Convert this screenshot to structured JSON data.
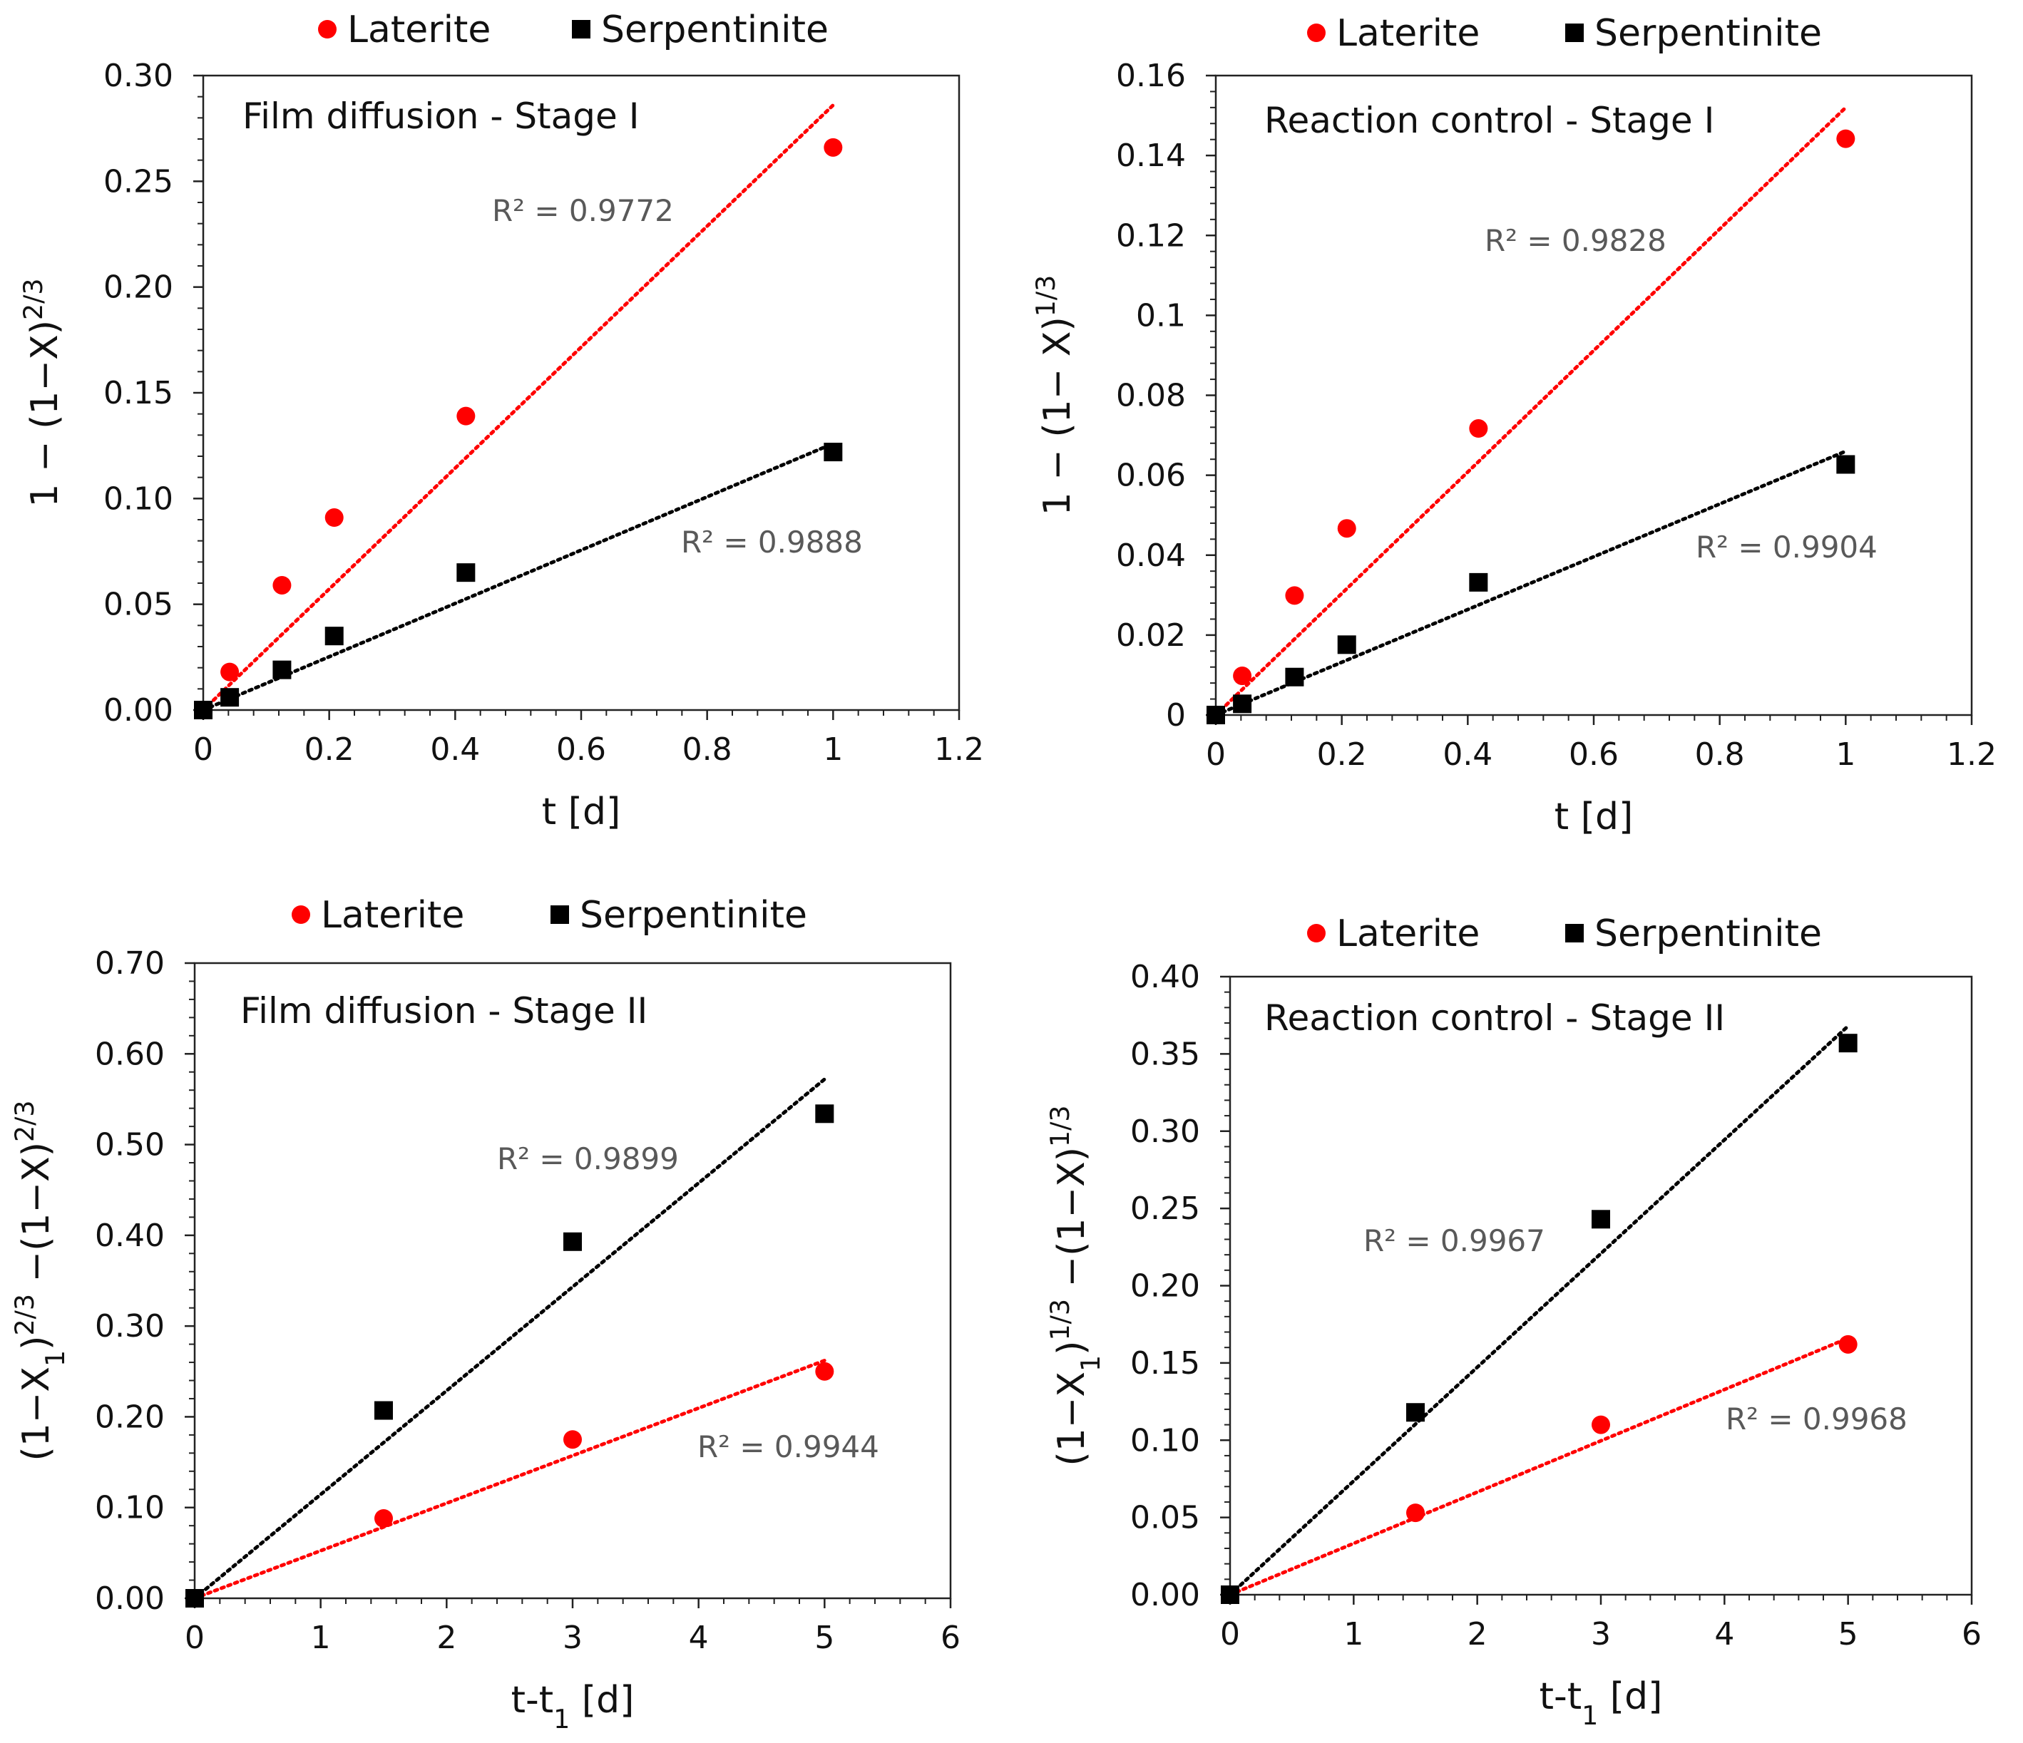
{
  "chart_data": [
    {
      "type": "scatter",
      "title": "Film diffusion - Stage I",
      "xlabel": "t [d]",
      "ylabel": "1 − (1−X)²ᐟ³",
      "ylabel_parts": [
        {
          "t": "1 − (1−X)"
        },
        {
          "t": "2/3",
          "sup": true
        }
      ],
      "xlim": [
        0,
        1.2
      ],
      "ylim": [
        0,
        0.3
      ],
      "x_ticks": [
        "0",
        "0.2",
        "0.4",
        "0.6",
        "0.8",
        "1",
        "1.2"
      ],
      "y_ticks": [
        "0.00",
        "0.05",
        "0.10",
        "0.15",
        "0.20",
        "0.25",
        "0.30"
      ],
      "legend": [
        "Laterite",
        "Serpentinite"
      ],
      "legend_position": "top",
      "grid": false,
      "series": [
        {
          "name": "Laterite",
          "marker": "circle",
          "color": "#ff0000",
          "x": [
            0,
            0.042,
            0.125,
            0.208,
            0.417,
            1.0
          ],
          "y": [
            0.0,
            0.018,
            0.059,
            0.091,
            0.139,
            0.266
          ],
          "trendline": {
            "x": [
              0,
              1.0
            ],
            "y": [
              0.0,
              0.286
            ]
          },
          "r2_label": "R² = 0.9772"
        },
        {
          "name": "Serpentinite",
          "marker": "square",
          "color": "#000000",
          "x": [
            0,
            0.042,
            0.125,
            0.208,
            0.417,
            1.0
          ],
          "y": [
            0.0,
            0.006,
            0.019,
            0.035,
            0.065,
            0.122
          ],
          "trendline": {
            "x": [
              0,
              1.0
            ],
            "y": [
              0.0,
              0.126
            ]
          },
          "r2_label": "R² = 0.9888"
        }
      ]
    },
    {
      "type": "scatter",
      "title": "Reaction control - Stage I",
      "xlabel": "t [d]",
      "ylabel": "1 − (1− X)1/3",
      "ylabel_parts": [
        {
          "t": "1 − (1− X)"
        },
        {
          "t": "1/3",
          "sup": true
        }
      ],
      "xlim": [
        0,
        1.2
      ],
      "ylim": [
        0,
        0.16
      ],
      "x_ticks": [
        "0",
        "0.2",
        "0.4",
        "0.6",
        "0.8",
        "1",
        "1.2"
      ],
      "y_ticks": [
        "0",
        "0.02",
        "0.04",
        "0.06",
        "0.08",
        "0.1",
        "0.12",
        "0.14",
        "0.16"
      ],
      "legend": [
        "Laterite",
        "Serpentinite"
      ],
      "legend_position": "top",
      "grid": false,
      "series": [
        {
          "name": "Laterite",
          "marker": "circle",
          "color": "#ff0000",
          "x": [
            0,
            0.042,
            0.125,
            0.208,
            0.417,
            1.0
          ],
          "y": [
            0.0,
            0.0098,
            0.0299,
            0.0467,
            0.0717,
            0.1442
          ],
          "trendline": {
            "x": [
              0,
              1.0
            ],
            "y": [
              0.0,
              0.152
            ]
          },
          "r2_label": "R² = 0.9828"
        },
        {
          "name": "Serpentinite",
          "marker": "square",
          "color": "#000000",
          "x": [
            0,
            0.042,
            0.125,
            0.208,
            0.417,
            1.0
          ],
          "y": [
            0.0,
            0.0028,
            0.0095,
            0.0176,
            0.0332,
            0.0627
          ],
          "trendline": {
            "x": [
              0,
              1.0
            ],
            "y": [
              0.0,
              0.066
            ]
          },
          "r2_label": "R² = 0.9904"
        }
      ]
    },
    {
      "type": "scatter",
      "title": "Film diffusion - Stage II",
      "xlabel": "t-t1 [d]",
      "xlabel_parts": [
        {
          "t": "t-t"
        },
        {
          "t": "1",
          "sub": true
        },
        {
          "t": " [d]"
        }
      ],
      "ylabel": "(1−X1)2/3 −(1−X)2/3",
      "ylabel_parts": [
        {
          "t": "(1−X"
        },
        {
          "t": "1",
          "sub": true
        },
        {
          "t": ")"
        },
        {
          "t": "2/3",
          "sup": true
        },
        {
          "t": " −(1−X)"
        },
        {
          "t": "2/3",
          "sup": true
        }
      ],
      "xlim": [
        0,
        6
      ],
      "ylim": [
        0,
        0.7
      ],
      "x_ticks": [
        "0",
        "1",
        "2",
        "3",
        "4",
        "5",
        "6"
      ],
      "y_ticks": [
        "0.00",
        "0.10",
        "0.20",
        "0.30",
        "0.40",
        "0.50",
        "0.60",
        "0.70"
      ],
      "legend": [
        "Laterite",
        "Serpentinite"
      ],
      "legend_position": "top",
      "grid": false,
      "series": [
        {
          "name": "Laterite",
          "marker": "circle",
          "color": "#ff0000",
          "x": [
            0,
            1.5,
            3,
            5
          ],
          "y": [
            0.0,
            0.088,
            0.175,
            0.25
          ],
          "trendline": {
            "x": [
              0,
              5
            ],
            "y": [
              0.0,
              0.262
            ]
          },
          "r2_label": "R² = 0.9944"
        },
        {
          "name": "Serpentinite",
          "marker": "square",
          "color": "#000000",
          "x": [
            0,
            1.5,
            3,
            5
          ],
          "y": [
            0.0,
            0.207,
            0.393,
            0.534
          ],
          "trendline": {
            "x": [
              0,
              5
            ],
            "y": [
              0.0,
              0.572
            ]
          },
          "r2_label": "R² = 0.9899"
        }
      ]
    },
    {
      "type": "scatter",
      "title": "Reaction control - Stage II",
      "xlabel": "t-t1 [d]",
      "xlabel_parts": [
        {
          "t": "t-t"
        },
        {
          "t": "1",
          "sub": true
        },
        {
          "t": " [d]"
        }
      ],
      "ylabel": "(1−X1)1/3 −(1−X)1/3",
      "ylabel_parts": [
        {
          "t": "(1−X"
        },
        {
          "t": "1",
          "sub": true
        },
        {
          "t": ")"
        },
        {
          "t": "1/3",
          "sup": true
        },
        {
          "t": " −(1−X)"
        },
        {
          "t": "1/3",
          "sup": true
        }
      ],
      "xlim": [
        0,
        6
      ],
      "ylim": [
        0,
        0.4
      ],
      "x_ticks": [
        "0",
        "1",
        "2",
        "3",
        "4",
        "5",
        "6"
      ],
      "y_ticks": [
        "0.00",
        "0.05",
        "0.10",
        "0.15",
        "0.20",
        "0.25",
        "0.30",
        "0.35",
        "0.40"
      ],
      "legend": [
        "Laterite",
        "Serpentinite"
      ],
      "legend_position": "top",
      "grid": false,
      "series": [
        {
          "name": "Laterite",
          "marker": "circle",
          "color": "#ff0000",
          "x": [
            0,
            1.5,
            3,
            5
          ],
          "y": [
            0.0,
            0.053,
            0.11,
            0.162
          ],
          "trendline": {
            "x": [
              0,
              5
            ],
            "y": [
              0.0,
              0.166
            ]
          },
          "r2_label": "R² = 0.9968"
        },
        {
          "name": "Serpentinite",
          "marker": "square",
          "color": "#000000",
          "x": [
            0,
            1.5,
            3,
            5
          ],
          "y": [
            0.0,
            0.118,
            0.243,
            0.357
          ],
          "trendline": {
            "x": [
              0,
              5
            ],
            "y": [
              0.0,
              0.368
            ]
          },
          "r2_label": "R² = 0.9967"
        }
      ]
    }
  ]
}
